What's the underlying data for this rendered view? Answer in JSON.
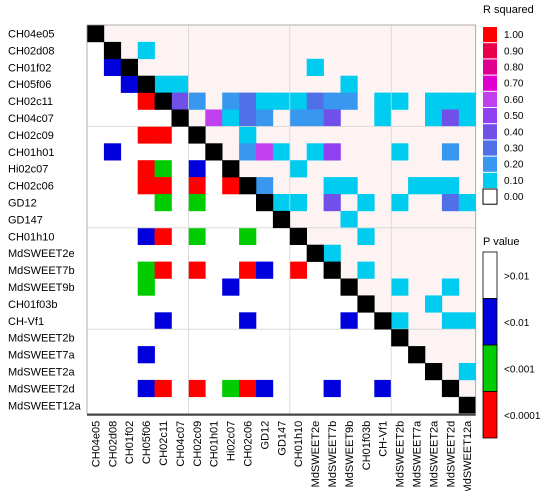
{
  "chart_data": {
    "type": "heatmap",
    "markers": [
      "CH04e05",
      "CH02d08",
      "CH01f02",
      "CH05f06",
      "CH02c11",
      "CH04c07",
      "CH02c09",
      "CH01h01",
      "Hi02c07",
      "CH02c06",
      "GD12",
      "GD147",
      "CH01h10",
      "MdSWEET2e",
      "MdSWEET7b",
      "MdSWEET9b",
      "CH01f03b",
      "CH-Vf1",
      "MdSWEET2b",
      "MdSWEET7a",
      "MdSWEET2a",
      "MdSWEET2d",
      "MdSWEET12a"
    ],
    "r_squared_legend": {
      "title": "R squared",
      "ticks": [
        "1.00",
        "0.90",
        "0.80",
        "0.70",
        "0.60",
        "0.50",
        "0.40",
        "0.30",
        "0.20",
        "0.10",
        "0.00"
      ],
      "colors": [
        "#ff0000",
        "#e8004a",
        "#e00090",
        "#e000d0",
        "#c040f0",
        "#9040f0",
        "#7050e8",
        "#5070e8",
        "#3898f0",
        "#00ccf0",
        "#ffffff"
      ]
    },
    "p_value_legend": {
      "title": "P value",
      "ticks": [
        ">0.01",
        "<0.01",
        "<0.001",
        "<0.0001"
      ],
      "colors": [
        "#ffffff",
        "#0000dd",
        "#00cc00",
        "#ff0000"
      ]
    },
    "r2_upper": [
      [
        1,
        3,
        0.12
      ],
      [
        2,
        13,
        0.1
      ],
      [
        3,
        4,
        0.1
      ],
      [
        3,
        5,
        0.12
      ],
      [
        3,
        15,
        0.08
      ],
      [
        4,
        5,
        0.45
      ],
      [
        4,
        6,
        0.18
      ],
      [
        4,
        8,
        0.2
      ],
      [
        4,
        9,
        0.3
      ],
      [
        4,
        10,
        0.08
      ],
      [
        4,
        11,
        0.12
      ],
      [
        4,
        12,
        0.12
      ],
      [
        4,
        13,
        0.3
      ],
      [
        4,
        14,
        0.18
      ],
      [
        4,
        15,
        0.2
      ],
      [
        4,
        17,
        0.08
      ],
      [
        4,
        18,
        0.1
      ],
      [
        4,
        20,
        0.1
      ],
      [
        4,
        21,
        0.1
      ],
      [
        4,
        22,
        0.1
      ],
      [
        5,
        7,
        0.6
      ],
      [
        5,
        8,
        0.12
      ],
      [
        5,
        9,
        0.28
      ],
      [
        5,
        10,
        0.2
      ],
      [
        5,
        12,
        0.25
      ],
      [
        5,
        13,
        0.25
      ],
      [
        5,
        14,
        0.45
      ],
      [
        5,
        17,
        0.1
      ],
      [
        5,
        20,
        0.1
      ],
      [
        5,
        21,
        0.45
      ],
      [
        5,
        22,
        0.1
      ],
      [
        6,
        9,
        0.12
      ],
      [
        7,
        9,
        0.18
      ],
      [
        7,
        10,
        0.65
      ],
      [
        7,
        11,
        0.12
      ],
      [
        7,
        13,
        0.15
      ],
      [
        7,
        14,
        0.5
      ],
      [
        7,
        18,
        0.1
      ],
      [
        7,
        21,
        0.25
      ],
      [
        8,
        12,
        0.1
      ],
      [
        9,
        10,
        0.25
      ],
      [
        9,
        14,
        0.1
      ],
      [
        9,
        15,
        0.1
      ],
      [
        9,
        19,
        0.1
      ],
      [
        9,
        20,
        0.12
      ],
      [
        9,
        21,
        0.12
      ],
      [
        10,
        11,
        0.1
      ],
      [
        10,
        12,
        0.12
      ],
      [
        10,
        14,
        0.45
      ],
      [
        10,
        16,
        0.08
      ],
      [
        10,
        18,
        0.1
      ],
      [
        10,
        21,
        0.3
      ],
      [
        10,
        22,
        0.08
      ],
      [
        11,
        15,
        0.1
      ],
      [
        12,
        16,
        0.1
      ],
      [
        13,
        14,
        0.12
      ],
      [
        14,
        16,
        0.1
      ],
      [
        15,
        18,
        0.1
      ],
      [
        15,
        21,
        0.1
      ],
      [
        16,
        20,
        0.1
      ],
      [
        17,
        18,
        0.1
      ],
      [
        17,
        21,
        0.1
      ],
      [
        17,
        22,
        0.1
      ],
      [
        20,
        22,
        0.12
      ]
    ],
    "p_lower": [
      [
        2,
        1,
        "<0.01"
      ],
      [
        3,
        2,
        "<0.01"
      ],
      [
        4,
        3,
        "<0.0001"
      ],
      [
        6,
        3,
        "<0.0001"
      ],
      [
        6,
        4,
        "<0.0001"
      ],
      [
        7,
        1,
        "<0.01"
      ],
      [
        8,
        3,
        "<0.0001"
      ],
      [
        8,
        4,
        "<0.001"
      ],
      [
        8,
        6,
        "<0.01"
      ],
      [
        9,
        3,
        "<0.0001"
      ],
      [
        9,
        4,
        "<0.0001"
      ],
      [
        9,
        6,
        "<0.0001"
      ],
      [
        9,
        8,
        "<0.0001"
      ],
      [
        10,
        4,
        "<0.001"
      ],
      [
        10,
        6,
        "<0.001"
      ],
      [
        12,
        3,
        "<0.01"
      ],
      [
        12,
        4,
        "<0.0001"
      ],
      [
        12,
        6,
        "<0.001"
      ],
      [
        12,
        9,
        "<0.001"
      ],
      [
        14,
        3,
        "<0.001"
      ],
      [
        14,
        4,
        "<0.0001"
      ],
      [
        14,
        6,
        "<0.0001"
      ],
      [
        14,
        9,
        "<0.0001"
      ],
      [
        14,
        10,
        "<0.01"
      ],
      [
        14,
        12,
        "<0.0001"
      ],
      [
        15,
        3,
        "<0.001"
      ],
      [
        15,
        8,
        "<0.01"
      ],
      [
        17,
        4,
        "<0.01"
      ],
      [
        17,
        9,
        "<0.01"
      ],
      [
        17,
        15,
        "<0.01"
      ],
      [
        19,
        3,
        "<0.01"
      ],
      [
        21,
        3,
        "<0.01"
      ],
      [
        21,
        4,
        "<0.0001"
      ],
      [
        21,
        6,
        "<0.0001"
      ],
      [
        21,
        8,
        "<0.001"
      ],
      [
        21,
        9,
        "<0.0001"
      ],
      [
        21,
        10,
        "<0.01"
      ],
      [
        21,
        14,
        "<0.01"
      ],
      [
        21,
        17,
        "<0.01"
      ]
    ]
  }
}
